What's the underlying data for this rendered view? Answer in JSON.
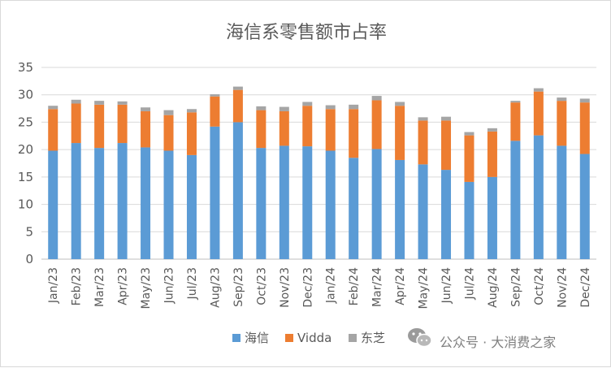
{
  "chart_data": {
    "type": "bar",
    "stacked": true,
    "title": "海信系零售额市占率",
    "categories": [
      "Jan/23",
      "Feb/23",
      "Mar/23",
      "Apr/23",
      "May/23",
      "Jun/23",
      "Jul/23",
      "Aug/23",
      "Sep/23",
      "Oct/23",
      "Nov/23",
      "Dec/23",
      "Jan/24",
      "Feb/24",
      "Mar/24",
      "Apr/24",
      "May/24",
      "Jun/24",
      "Jul/24",
      "Aug/24",
      "Sep/24",
      "Oct/24",
      "Nov/24",
      "Dec/24"
    ],
    "series": [
      {
        "name": "海信",
        "color": "#5b9bd5",
        "values": [
          19.8,
          21.2,
          20.3,
          21.2,
          20.4,
          19.8,
          19.0,
          24.2,
          25.0,
          20.3,
          20.7,
          20.6,
          19.8,
          18.5,
          20.1,
          18.1,
          17.3,
          16.3,
          14.1,
          15.0,
          21.6,
          22.6,
          20.7,
          19.2
        ]
      },
      {
        "name": "Vidda",
        "color": "#ed7d31",
        "values": [
          7.6,
          7.2,
          7.9,
          7.0,
          6.6,
          6.5,
          7.8,
          5.5,
          5.9,
          6.9,
          6.3,
          7.4,
          7.6,
          8.9,
          8.9,
          9.9,
          8.0,
          9.0,
          8.5,
          8.3,
          7.0,
          8.0,
          8.2,
          9.4
        ]
      },
      {
        "name": "东芝",
        "color": "#a5a5a5",
        "values": [
          0.6,
          0.7,
          0.7,
          0.6,
          0.7,
          0.9,
          0.6,
          0.4,
          0.6,
          0.7,
          0.8,
          0.7,
          0.7,
          0.8,
          0.8,
          0.7,
          0.6,
          0.7,
          0.6,
          0.6,
          0.3,
          0.6,
          0.6,
          0.7
        ]
      }
    ],
    "ylim": [
      0,
      35
    ],
    "yticks": [
      0,
      5,
      10,
      15,
      20,
      25,
      30,
      35
    ],
    "grid": true,
    "legend": "bottom-right"
  },
  "watermark": {
    "text": "公众号 · 大消费之家",
    "icon": "wechat-icon"
  }
}
